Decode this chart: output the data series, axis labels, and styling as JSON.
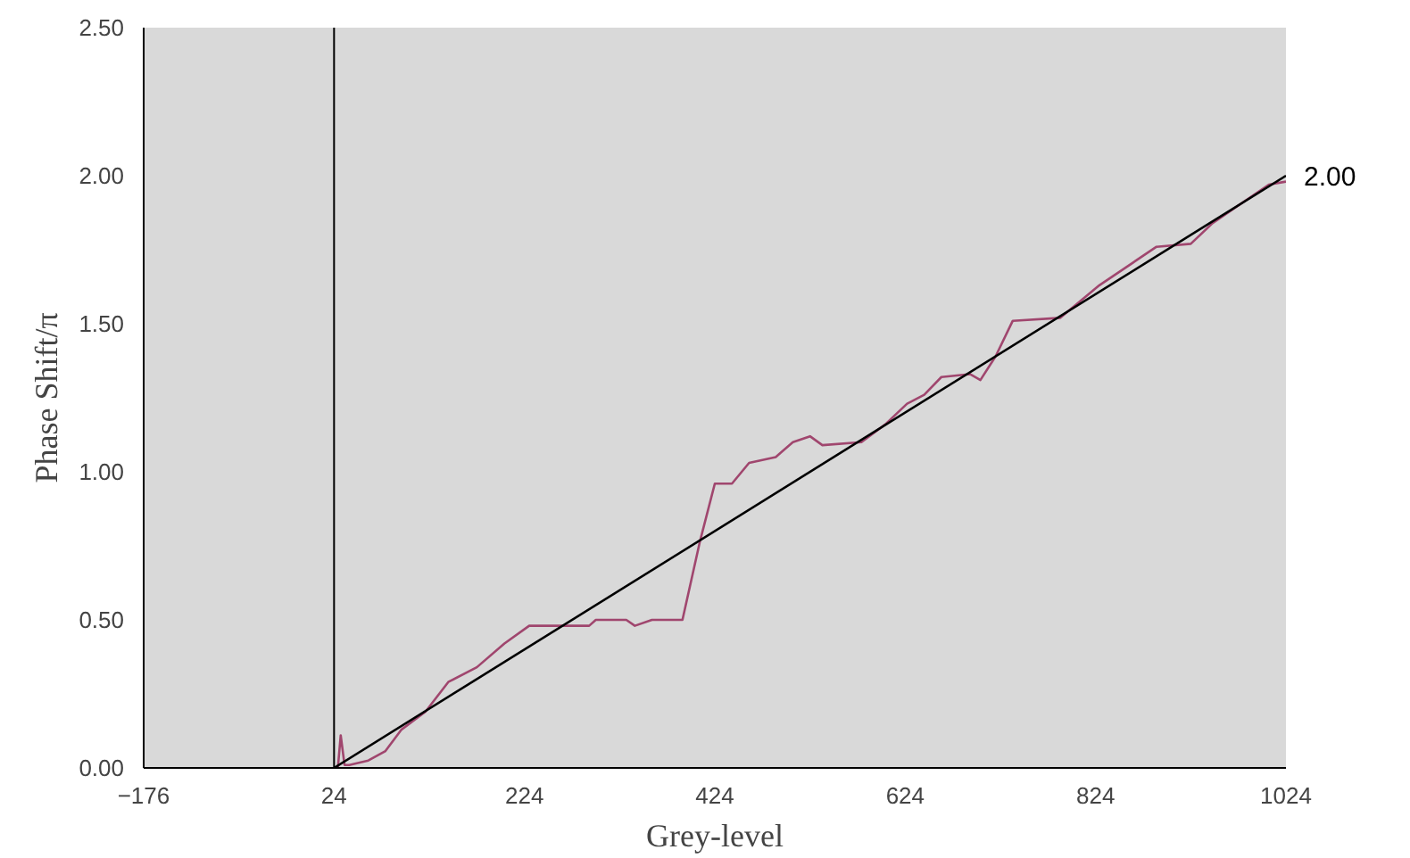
{
  "chart_data": {
    "type": "line",
    "xlabel": "Grey-level",
    "ylabel": "Phase Shift/π",
    "xlim": [
      -176,
      1024
    ],
    "xticks": [
      -176,
      24,
      224,
      424,
      624,
      824,
      1024
    ],
    "ylim": [
      0,
      2.5
    ],
    "yticks": [
      {
        "value": 0,
        "label": "0.00"
      },
      {
        "value": 0.5,
        "label": "0.50"
      },
      {
        "value": 1,
        "label": "1.00"
      },
      {
        "value": 1.5,
        "label": "1.50"
      },
      {
        "value": 2,
        "label": "2.00"
      },
      {
        "value": 2.5,
        "label": "2.50"
      }
    ],
    "grid": false,
    "marker": "none",
    "line_style": "solid",
    "series": [
      {
        "color": "#a0466e",
        "x": [
          24,
          28,
          31,
          35,
          40,
          60,
          78,
          95,
          120,
          144,
          174,
          203,
          229,
          292,
          299,
          331,
          340,
          358,
          390,
          408,
          424,
          442,
          460,
          488,
          506,
          524,
          537,
          578,
          603,
          626,
          644,
          662,
          692,
          703,
          719,
          737,
          787,
          828,
          888,
          924,
          947,
          1006,
          1024
        ],
        "values": [
          0,
          0,
          0.11,
          0.01,
          0.01,
          0.025,
          0.057,
          0.13,
          0.19,
          0.29,
          0.34,
          0.42,
          0.48,
          0.48,
          0.5,
          0.5,
          0.48,
          0.5,
          0.5,
          0.76,
          0.96,
          0.96,
          1.03,
          1.05,
          1.1,
          1.12,
          1.09,
          1.1,
          1.16,
          1.23,
          1.26,
          1.32,
          1.33,
          1.31,
          1.39,
          1.51,
          1.52,
          1.63,
          1.76,
          1.77,
          1.84,
          1.97,
          1.98
        ]
      },
      {
        "color": "#000000",
        "x": [
          24,
          1024
        ],
        "values": [
          0,
          2.0
        ]
      }
    ],
    "ref_lines": [
      {
        "axis": "x",
        "value": 24,
        "color": "#000000"
      }
    ],
    "annotations": [
      {
        "text": "2.00",
        "x": 1024,
        "y": 2.0
      }
    ]
  }
}
